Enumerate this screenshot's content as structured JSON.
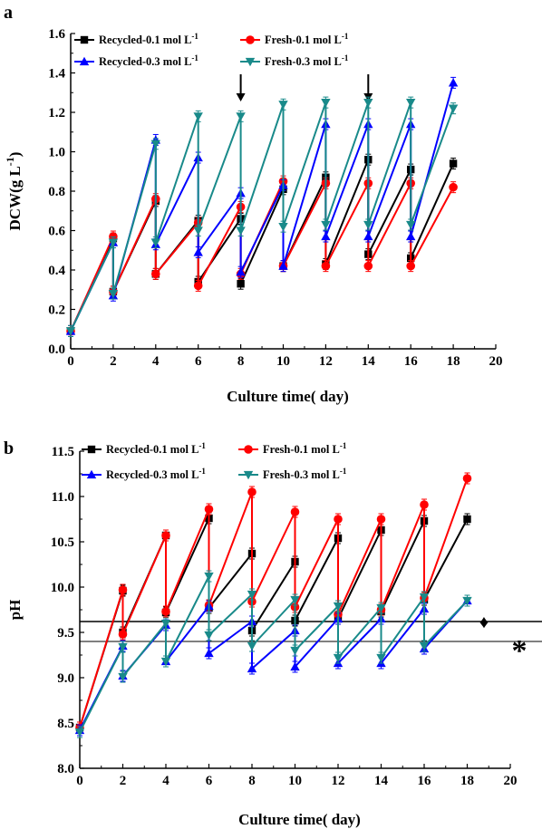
{
  "chart_data": [
    {
      "type": "line",
      "panel": "a",
      "xlabel": "Culture time( day)",
      "ylabel": "DCW(g L",
      "ylabel_sup": "-1",
      "ylabel_close": ")",
      "xlim": [
        0,
        20
      ],
      "ylim": [
        0,
        1.6
      ],
      "xticks": [
        0,
        2,
        4,
        6,
        8,
        10,
        12,
        14,
        16,
        18,
        20
      ],
      "yticks": [
        0.0,
        0.2,
        0.4,
        0.6,
        0.8,
        1.0,
        1.2,
        1.4,
        1.6
      ],
      "legend_unit": "-1",
      "arrows_at_day": [
        8,
        14
      ],
      "series": [
        {
          "name": "Recycled-0.1 mol L",
          "color": "#000000",
          "marker": "square",
          "x": [
            0,
            2,
            2,
            4,
            4,
            6,
            6,
            8,
            8,
            10,
            10,
            12,
            12,
            14,
            14,
            16,
            16,
            18
          ],
          "y": [
            0.09,
            0.56,
            0.29,
            0.75,
            0.38,
            0.65,
            0.34,
            0.66,
            0.33,
            0.81,
            0.42,
            0.87,
            0.43,
            0.96,
            0.48,
            0.91,
            0.46,
            0.94
          ]
        },
        {
          "name": "Fresh-0.1 mol L",
          "color": "#ff0000",
          "marker": "circle",
          "x": [
            0,
            2,
            2,
            4,
            4,
            6,
            6,
            8,
            8,
            10,
            10,
            12,
            12,
            14,
            14,
            16,
            16,
            18
          ],
          "y": [
            0.09,
            0.57,
            0.29,
            0.76,
            0.38,
            0.64,
            0.32,
            0.72,
            0.38,
            0.85,
            0.42,
            0.84,
            0.42,
            0.84,
            0.42,
            0.84,
            0.42,
            0.82
          ]
        },
        {
          "name": "Recycled-0.3 mol L",
          "color": "#0000ff",
          "marker": "triangle-up",
          "x": [
            0,
            2,
            2,
            4,
            4,
            6,
            6,
            8,
            8,
            10,
            10,
            12,
            12,
            14,
            14,
            16,
            16,
            18
          ],
          "y": [
            0.09,
            0.54,
            0.27,
            1.06,
            0.53,
            0.97,
            0.49,
            0.79,
            0.39,
            0.83,
            0.42,
            1.14,
            0.57,
            1.14,
            0.57,
            1.14,
            0.57,
            1.35
          ]
        },
        {
          "name": "Fresh-0.3 mol L",
          "color": "#198a8a",
          "marker": "triangle-down",
          "x": [
            0,
            2,
            2,
            4,
            4,
            6,
            6,
            8,
            8,
            10,
            10,
            12,
            12,
            14,
            14,
            16,
            16,
            18
          ],
          "y": [
            0.09,
            0.54,
            0.28,
            1.04,
            0.54,
            1.18,
            0.6,
            1.18,
            0.6,
            1.24,
            0.62,
            1.25,
            0.63,
            1.25,
            0.63,
            1.25,
            0.63,
            1.22
          ]
        }
      ]
    },
    {
      "type": "line",
      "panel": "b",
      "xlabel": "Culture time( day)",
      "ylabel": "pH",
      "xlim": [
        0,
        20
      ],
      "ylim": [
        8.0,
        11.5
      ],
      "xticks": [
        0,
        2,
        4,
        6,
        8,
        10,
        12,
        14,
        16,
        18,
        20
      ],
      "yticks": [
        8.0,
        8.5,
        9.0,
        9.5,
        10.0,
        10.5,
        11.0,
        11.5
      ],
      "legend_unit": "-1",
      "reference_lines": [
        {
          "y": 9.62,
          "marker": "♦"
        },
        {
          "y": 9.4,
          "marker": "*"
        }
      ],
      "series": [
        {
          "name": "Recycled-0.1 mol L",
          "color": "#000000",
          "marker": "square",
          "x": [
            0,
            2,
            2,
            4,
            4,
            6,
            6,
            8,
            8,
            10,
            10,
            12,
            12,
            14,
            14,
            16,
            16,
            18
          ],
          "y": [
            8.45,
            9.96,
            9.5,
            10.57,
            9.72,
            10.76,
            9.77,
            10.37,
            9.52,
            10.28,
            9.63,
            10.54,
            9.65,
            10.63,
            9.73,
            10.73,
            9.86,
            10.75
          ]
        },
        {
          "name": "Fresh-0.1 mol L",
          "color": "#ff0000",
          "marker": "circle",
          "x": [
            0,
            2,
            2,
            4,
            4,
            6,
            6,
            8,
            8,
            10,
            10,
            12,
            12,
            14,
            14,
            16,
            16,
            18
          ],
          "y": [
            8.45,
            9.97,
            9.48,
            10.57,
            9.73,
            10.86,
            9.8,
            11.05,
            9.84,
            10.83,
            9.78,
            10.75,
            9.7,
            10.75,
            9.75,
            10.91,
            9.88,
            11.2
          ]
        },
        {
          "name": "Recycled-0.3 mol L",
          "color": "#0000ff",
          "marker": "triangle-up",
          "x": [
            0,
            2,
            2,
            4,
            4,
            6,
            6,
            8,
            8,
            10,
            10,
            12,
            12,
            14,
            14,
            16,
            16,
            18
          ],
          "y": [
            8.42,
            9.35,
            9.02,
            9.58,
            9.18,
            9.79,
            9.27,
            9.62,
            9.1,
            9.52,
            9.12,
            9.65,
            9.16,
            9.65,
            9.16,
            9.76,
            9.32,
            9.85
          ]
        },
        {
          "name": "Fresh-0.3 mol L",
          "color": "#198a8a",
          "marker": "triangle-down",
          "x": [
            0,
            2,
            2,
            4,
            4,
            6,
            6,
            8,
            8,
            10,
            10,
            12,
            12,
            14,
            14,
            16,
            16,
            18
          ],
          "y": [
            8.4,
            9.34,
            9.01,
            9.6,
            9.18,
            10.12,
            9.47,
            9.92,
            9.35,
            9.86,
            9.3,
            9.79,
            9.22,
            9.77,
            9.22,
            9.89,
            9.35,
            9.85
          ]
        }
      ]
    }
  ]
}
